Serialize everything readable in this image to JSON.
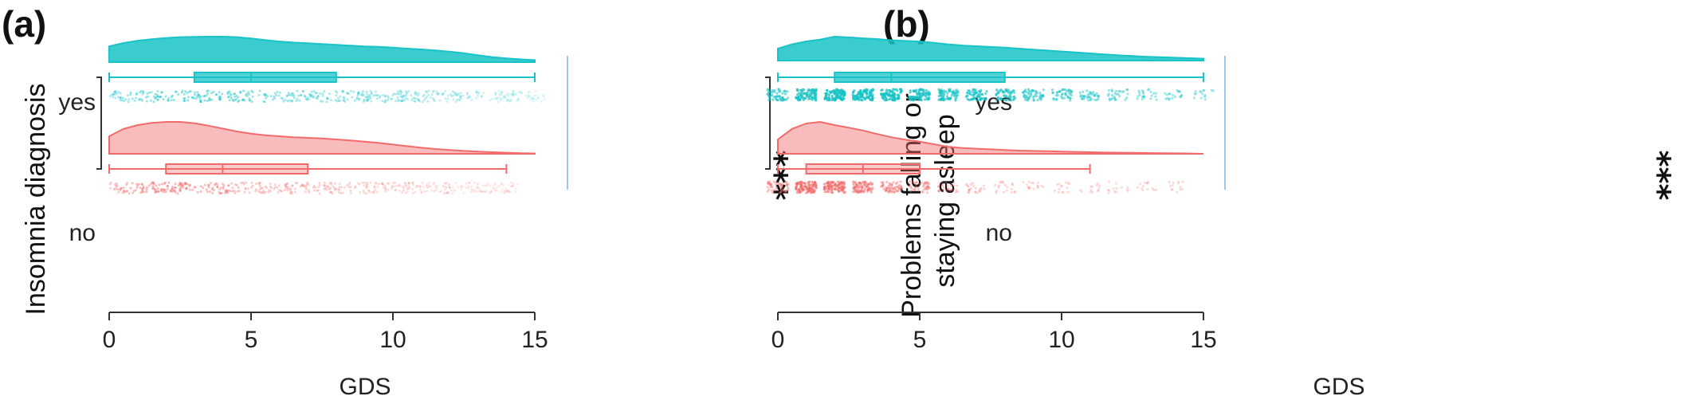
{
  "chart_data": [
    {
      "type": "raincloud",
      "panel_label": "(a)",
      "xlabel": "GDS",
      "ylabel": "Insomnia diagnosis",
      "ylabel_extra": "",
      "xlim": [
        0,
        15
      ],
      "xticks": [
        0,
        5,
        10,
        15
      ],
      "categories": [
        "yes",
        "no"
      ],
      "series": [
        {
          "name": "yes",
          "color": "#19c3c7",
          "box": {
            "min": 0,
            "q1": 3,
            "median": 5,
            "q3": 8,
            "max": 15
          },
          "density": [
            [
              0,
              0.62
            ],
            [
              0.5,
              0.75
            ],
            [
              1,
              0.84
            ],
            [
              1.5,
              0.9
            ],
            [
              2,
              0.95
            ],
            [
              2.5,
              0.98
            ],
            [
              3,
              0.99
            ],
            [
              3.5,
              1.0
            ],
            [
              4,
              1.0
            ],
            [
              4.5,
              0.98
            ],
            [
              5,
              0.93
            ],
            [
              5.5,
              0.87
            ],
            [
              6,
              0.81
            ],
            [
              6.5,
              0.77
            ],
            [
              7,
              0.74
            ],
            [
              7.5,
              0.71
            ],
            [
              8,
              0.68
            ],
            [
              8.5,
              0.65
            ],
            [
              9,
              0.62
            ],
            [
              9.5,
              0.6
            ],
            [
              10,
              0.57
            ],
            [
              10.5,
              0.53
            ],
            [
              11,
              0.5
            ],
            [
              11.5,
              0.46
            ],
            [
              12,
              0.41
            ],
            [
              12.5,
              0.35
            ],
            [
              13,
              0.27
            ],
            [
              13.5,
              0.2
            ],
            [
              14,
              0.15
            ],
            [
              14.5,
              0.11
            ],
            [
              15,
              0.08
            ]
          ],
          "points_density": "uniform"
        },
        {
          "name": "no",
          "color": "#f26b6b",
          "box": {
            "min": 0,
            "q1": 2,
            "median": 4,
            "q3": 7,
            "max": 14
          },
          "density": [
            [
              0,
              0.55
            ],
            [
              0.5,
              0.78
            ],
            [
              1,
              0.9
            ],
            [
              1.5,
              0.97
            ],
            [
              2,
              1.0
            ],
            [
              2.5,
              1.0
            ],
            [
              3,
              0.96
            ],
            [
              3.5,
              0.88
            ],
            [
              4,
              0.79
            ],
            [
              4.5,
              0.7
            ],
            [
              5,
              0.63
            ],
            [
              5.5,
              0.58
            ],
            [
              6,
              0.55
            ],
            [
              6.5,
              0.52
            ],
            [
              7,
              0.5
            ],
            [
              7.5,
              0.48
            ],
            [
              8,
              0.45
            ],
            [
              8.5,
              0.42
            ],
            [
              9,
              0.38
            ],
            [
              9.5,
              0.34
            ],
            [
              10,
              0.29
            ],
            [
              10.5,
              0.24
            ],
            [
              11,
              0.19
            ],
            [
              11.5,
              0.15
            ],
            [
              12,
              0.12
            ],
            [
              12.5,
              0.09
            ],
            [
              13,
              0.07
            ],
            [
              13.5,
              0.05
            ],
            [
              14,
              0.035
            ],
            [
              14.5,
              0.02
            ],
            [
              15,
              0.01
            ]
          ],
          "points_density": "uniform"
        }
      ],
      "significance": "***"
    },
    {
      "type": "raincloud",
      "panel_label": "(b)",
      "xlabel": "GDS",
      "ylabel": "Problems falling or",
      "ylabel_extra": "staying asleep",
      "xlim": [
        0,
        15
      ],
      "xticks": [
        0,
        5,
        10,
        15
      ],
      "categories": [
        "yes",
        "no"
      ],
      "series": [
        {
          "name": "yes",
          "color": "#19c3c7",
          "box": {
            "min": 0,
            "q1": 2,
            "median": 4,
            "q3": 8,
            "max": 15
          },
          "density": [
            [
              0,
              0.5
            ],
            [
              0.5,
              0.68
            ],
            [
              1,
              0.8
            ],
            [
              1.5,
              0.88
            ],
            [
              2,
              1.0
            ],
            [
              2.5,
              0.97
            ],
            [
              3,
              0.93
            ],
            [
              3.5,
              0.9
            ],
            [
              4,
              0.85
            ],
            [
              4.5,
              0.82
            ],
            [
              5,
              0.8
            ],
            [
              5.5,
              0.74
            ],
            [
              6,
              0.68
            ],
            [
              6.5,
              0.63
            ],
            [
              7,
              0.6
            ],
            [
              7.5,
              0.57
            ],
            [
              8,
              0.54
            ],
            [
              8.5,
              0.5
            ],
            [
              9,
              0.46
            ],
            [
              9.5,
              0.42
            ],
            [
              10,
              0.38
            ],
            [
              10.5,
              0.34
            ],
            [
              11,
              0.3
            ],
            [
              11.5,
              0.26
            ],
            [
              12,
              0.22
            ],
            [
              12.5,
              0.19
            ],
            [
              13,
              0.16
            ],
            [
              13.5,
              0.14
            ],
            [
              14,
              0.12
            ],
            [
              14.5,
              0.1
            ],
            [
              15,
              0.08
            ]
          ],
          "points_density": "integer-stacks"
        },
        {
          "name": "no",
          "color": "#f26b6b",
          "box": {
            "min": 0,
            "q1": 1,
            "median": 3,
            "q3": 5,
            "max": 11
          },
          "density": [
            [
              0,
              0.45
            ],
            [
              0.5,
              0.78
            ],
            [
              1,
              0.95
            ],
            [
              1.5,
              1.0
            ],
            [
              2,
              0.9
            ],
            [
              2.5,
              0.82
            ],
            [
              3,
              0.73
            ],
            [
              3.5,
              0.62
            ],
            [
              4,
              0.52
            ],
            [
              4.5,
              0.44
            ],
            [
              5,
              0.38
            ],
            [
              5.5,
              0.3
            ],
            [
              6,
              0.22
            ],
            [
              6.5,
              0.18
            ],
            [
              7,
              0.16
            ],
            [
              7.5,
              0.14
            ],
            [
              8,
              0.12
            ],
            [
              8.5,
              0.1
            ],
            [
              9,
              0.09
            ],
            [
              9.5,
              0.08
            ],
            [
              10,
              0.07
            ],
            [
              10.5,
              0.06
            ],
            [
              11,
              0.05
            ],
            [
              11.5,
              0.04
            ],
            [
              12,
              0.035
            ],
            [
              12.5,
              0.03
            ],
            [
              13,
              0.025
            ],
            [
              13.5,
              0.02
            ],
            [
              14,
              0.015
            ],
            [
              14.5,
              0.01
            ],
            [
              15,
              0.0
            ]
          ],
          "points_density": "integer-stacks"
        }
      ],
      "significance": "***"
    }
  ]
}
